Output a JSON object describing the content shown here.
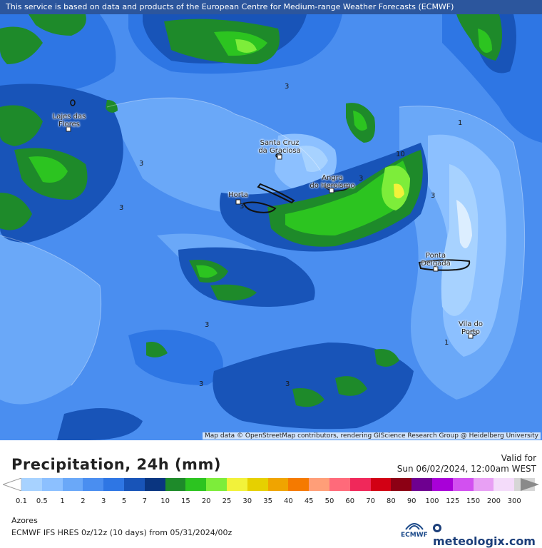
{
  "banner": "This service is based on data and products of the European Centre for Medium-range Weather Forecasts (ECMWF)",
  "attribution": "Map data © OpenStreetMap contributors, rendering GIScience Research Group @ Heidelberg University",
  "cities": [
    {
      "name_line1": "Lajes das",
      "name_line2": "Flores"
    },
    {
      "name_line1": "Santa Cruz",
      "name_line2": "da Graciosa"
    },
    {
      "name_line1": "Angra",
      "name_line2": "do Heroísmo"
    },
    {
      "name_line1": "Horta",
      "name_line2": ""
    },
    {
      "name_line1": "Ponta",
      "name_line2": "Delgada"
    },
    {
      "name_line1": "Vila do",
      "name_line2": "Porto"
    }
  ],
  "contour_labels": [
    "3",
    "3",
    "3",
    "3",
    "3",
    "3",
    "3",
    "1",
    "1",
    "10",
    "3",
    "3"
  ],
  "legend": {
    "title": "Precipitation, 24h (mm)",
    "valid_for_label": "Valid for",
    "valid_time": "Sun 06/02/2024, 12:00am WEST",
    "scale": [
      {
        "label": "0.1",
        "color": "#a7d2ff"
      },
      {
        "label": "0.5",
        "color": "#8cc0ff"
      },
      {
        "label": "1",
        "color": "#6aa8f8"
      },
      {
        "label": "2",
        "color": "#4a8ef0"
      },
      {
        "label": "3",
        "color": "#2e76e4"
      },
      {
        "label": "5",
        "color": "#1854b8"
      },
      {
        "label": "7",
        "color": "#0a3580"
      },
      {
        "label": "10",
        "color": "#1e8a2a"
      },
      {
        "label": "15",
        "color": "#2cc420"
      },
      {
        "label": "20",
        "color": "#7ded3a"
      },
      {
        "label": "25",
        "color": "#f2f23a"
      },
      {
        "label": "30",
        "color": "#e6d000"
      },
      {
        "label": "35",
        "color": "#f0a400"
      },
      {
        "label": "40",
        "color": "#f57a00"
      },
      {
        "label": "45",
        "color": "#ff9e78"
      },
      {
        "label": "50",
        "color": "#ff6a7a"
      },
      {
        "label": "60",
        "color": "#f0285a"
      },
      {
        "label": "70",
        "color": "#d20014"
      },
      {
        "label": "80",
        "color": "#8c0014"
      },
      {
        "label": "90",
        "color": "#6e0090"
      },
      {
        "label": "100",
        "color": "#a800d8"
      },
      {
        "label": "125",
        "color": "#d250f0"
      },
      {
        "label": "150",
        "color": "#e8a0f4"
      },
      {
        "label": "200",
        "color": "#f4dcfa"
      },
      {
        "label": "300",
        "color": "#d6d6d6"
      }
    ],
    "region": "Azores",
    "model_line": "ECMWF IFS HRES 0z/12z (10 days)  from  05/31/2024/00z",
    "ecmwf_logo": "ECMWF",
    "brand": "meteologix.com"
  }
}
